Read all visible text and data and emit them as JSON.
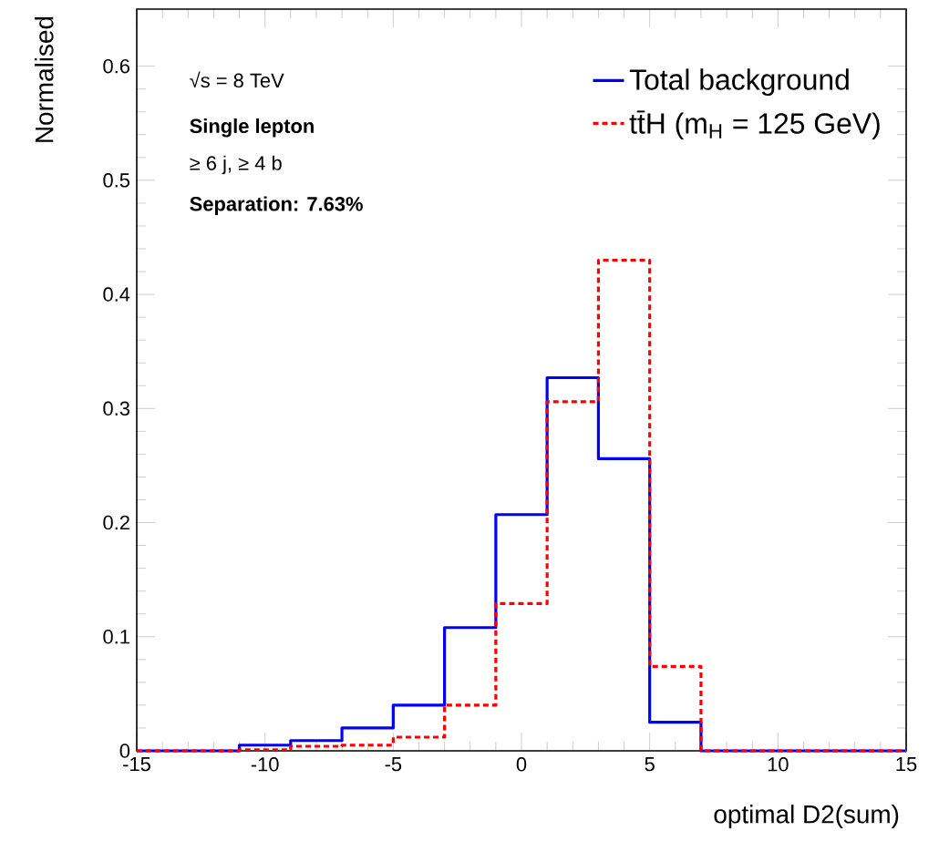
{
  "chart_data": {
    "type": "histogram",
    "xlabel": "optimal D2(sum)",
    "ylabel": "Normalised",
    "bins": [
      -15,
      -13,
      -11,
      -9,
      -7,
      -5,
      -3,
      -1,
      1,
      3,
      5,
      7,
      9,
      11,
      13,
      15
    ],
    "series": [
      {
        "name": "Total background",
        "color": "#0000ff",
        "line_style": "solid",
        "values": [
          0,
          0,
          0.005,
          0.009,
          0.02,
          0.04,
          0.108,
          0.207,
          0.327,
          0.256,
          0.025,
          0,
          0,
          0,
          0
        ]
      },
      {
        "name": "tt̄H (m$_{H}$ = 125 GeV)",
        "color": "#ff0000",
        "line_style": "dashed",
        "values": [
          0,
          0,
          0.001,
          0.004,
          0.005,
          0.012,
          0.04,
          0.129,
          0.306,
          0.43,
          0.074,
          0,
          0,
          0,
          0
        ]
      }
    ],
    "xlim": [
      -15,
      15
    ],
    "ylim": [
      0,
      0.65
    ],
    "xticks": [
      -15,
      -10,
      -5,
      0,
      5,
      10,
      15
    ],
    "yticks": [
      0,
      0.1,
      0.2,
      0.3,
      0.4,
      0.5,
      0.6
    ],
    "legend": "top right",
    "annotations": [
      "√s = 8 TeV",
      "Single lepton",
      "≥ 6 j, ≥ 4 b",
      "Separation: 7.63%"
    ]
  }
}
